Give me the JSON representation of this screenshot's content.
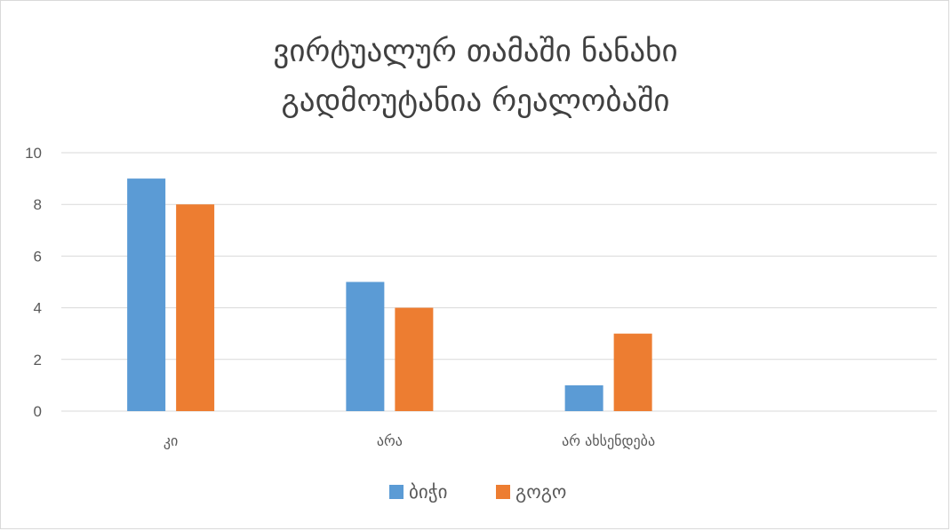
{
  "chart_data": {
    "type": "bar",
    "title_lines": [
      "ვირტუალურ თამაში ნანახი",
      "გადმოუტანია რეალობაში"
    ],
    "categories": [
      "კი",
      "არა",
      "არ ახსენდება",
      ""
    ],
    "series": [
      {
        "name": "ბიჭი",
        "values": [
          9,
          5,
          1,
          null
        ],
        "color": "#5b9bd5"
      },
      {
        "name": "გოგო",
        "values": [
          8,
          4,
          3,
          null
        ],
        "color": "#ed7d31"
      }
    ],
    "ylim": [
      0,
      10
    ],
    "yticks": [
      0,
      2,
      4,
      6,
      8,
      10
    ],
    "grid": true,
    "legend_position": "bottom",
    "xlabel": "",
    "ylabel": ""
  }
}
